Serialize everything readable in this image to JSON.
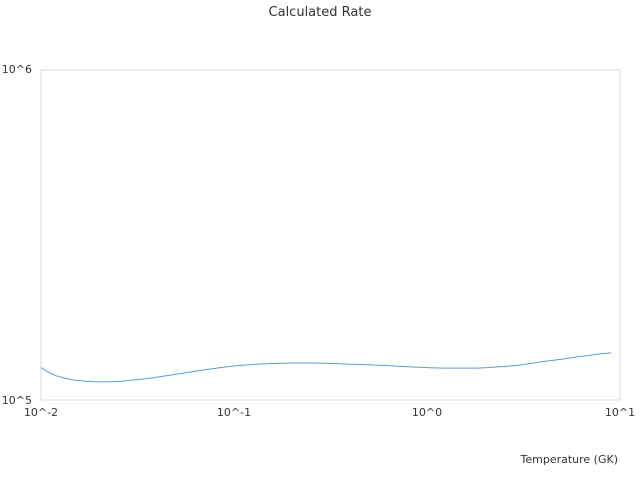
{
  "chart_data": {
    "type": "line",
    "title": "Calculated Rate",
    "xlabel": "Temperature (GK)",
    "ylabel": "",
    "x_scale": "log",
    "y_scale": "log",
    "xlim": [
      0.01,
      10
    ],
    "ylim": [
      100000,
      1000000
    ],
    "x_tick_labels": [
      "10^-2",
      "10^-1",
      "10^0",
      "10^1"
    ],
    "y_tick_labels": [
      "10^5",
      "10^6"
    ],
    "grid": false,
    "legend": "none",
    "colors": {
      "series": "#5b9bd5",
      "frame": "#d9d9d9",
      "text": "#333333"
    },
    "series": [
      {
        "x": [
          0.01,
          0.011,
          0.012,
          0.0135,
          0.015,
          0.017,
          0.019,
          0.021,
          0.023,
          0.026,
          0.03,
          0.035,
          0.04,
          0.05,
          0.06,
          0.07,
          0.085,
          0.1,
          0.12,
          0.15,
          0.2,
          0.25,
          0.3,
          0.4,
          0.5,
          0.6,
          0.7,
          0.8,
          1.0,
          1.2,
          1.5,
          1.8,
          2.0,
          2.5,
          3.0,
          3.5,
          4.0,
          5.0,
          6.0,
          7.0,
          8.0,
          9.0
        ],
        "y": [
          125400,
          121100,
          118400,
          116200,
          114800,
          114000,
          113600,
          113500,
          113600,
          114000,
          115000,
          116000,
          117300,
          119600,
          121700,
          123400,
          125400,
          126800,
          127900,
          128900,
          129500,
          129500,
          129200,
          128400,
          127800,
          127300,
          126500,
          126100,
          125400,
          124900,
          124900,
          124900,
          125200,
          126300,
          127600,
          129200,
          130800,
          132900,
          135100,
          136700,
          138000,
          138900
        ]
      }
    ]
  }
}
